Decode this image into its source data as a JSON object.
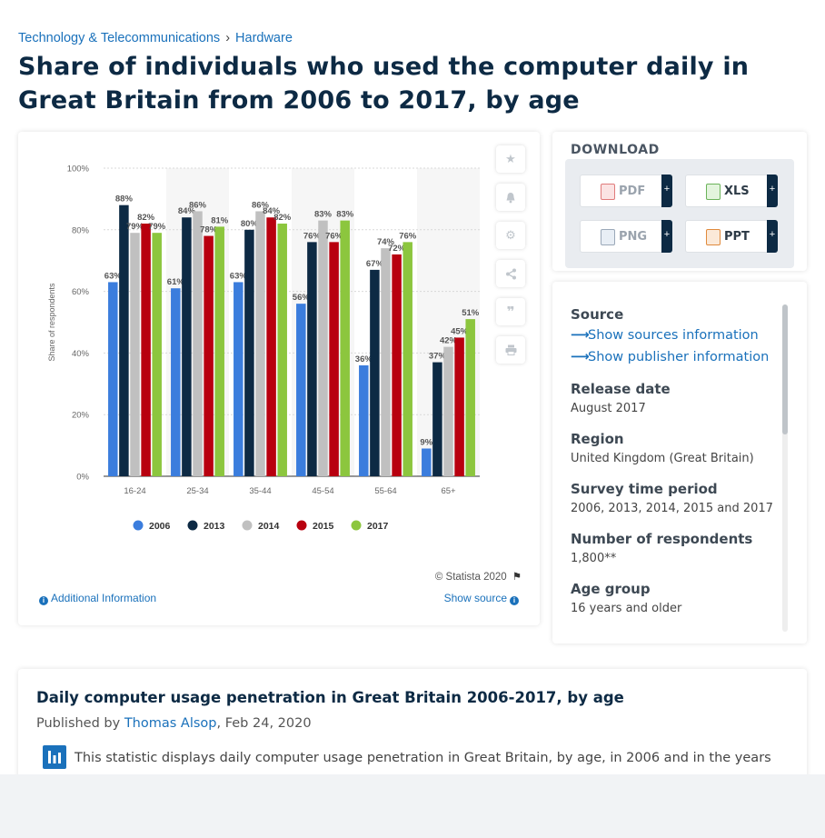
{
  "breadcrumb": {
    "category": "Technology & Telecommunications",
    "separator": "›",
    "sub": "Hardware"
  },
  "page_title": "Share of individuals who used the computer daily in Great Britain from 2006 to 2017, by age",
  "chart_data": {
    "type": "bar",
    "categories": [
      "16-24",
      "25-34",
      "35-44",
      "45-54",
      "55-64",
      "65+"
    ],
    "series": [
      {
        "name": "2006",
        "color": "#3b7ddd",
        "values": [
          63,
          61,
          63,
          56,
          36,
          9
        ]
      },
      {
        "name": "2013",
        "color": "#0d2a44",
        "values": [
          88,
          84,
          80,
          76,
          67,
          37
        ]
      },
      {
        "name": "2014",
        "color": "#c0c0c0",
        "values": [
          79,
          86,
          86,
          83,
          74,
          42
        ]
      },
      {
        "name": "2015",
        "color": "#b8000f",
        "values": [
          82,
          78,
          84,
          76,
          72,
          45
        ]
      },
      {
        "name": "2017",
        "color": "#8cc63e",
        "values": [
          79,
          81,
          82,
          83,
          76,
          51
        ]
      }
    ],
    "ylabel": "Share of respondents",
    "ylim": [
      0,
      100
    ],
    "yticks": [
      "0%",
      "20%",
      "40%",
      "60%",
      "80%",
      "100%"
    ],
    "value_suffix": "%",
    "grid": true,
    "legend": "bottom"
  },
  "chart_footer": {
    "copyright": "© Statista 2020",
    "additional_info": "Additional Information",
    "show_source": "Show source"
  },
  "toolbar_icons": [
    "star-icon",
    "bell-icon",
    "gear-icon",
    "share-icon",
    "quote-icon",
    "print-icon"
  ],
  "download": {
    "title": "DOWNLOAD",
    "buttons": [
      {
        "label": "PDF",
        "plus": "+"
      },
      {
        "label": "XLS",
        "plus": "+"
      },
      {
        "label": "PNG",
        "plus": "+"
      },
      {
        "label": "PPT",
        "plus": "+"
      }
    ]
  },
  "source_panel": {
    "source_heading": "Source",
    "show_sources": "Show sources information",
    "show_publisher": "Show publisher information",
    "release_heading": "Release date",
    "release_value": "August 2017",
    "region_heading": "Region",
    "region_value": "United Kingdom (Great Britain)",
    "survey_heading": "Survey time period",
    "survey_value": "2006, 2013, 2014, 2015 and 2017",
    "respondents_heading": "Number of respondents",
    "respondents_value": "1,800**",
    "age_heading": "Age group",
    "age_value": "16 years and older"
  },
  "description": {
    "title": "Daily computer usage penetration in Great Britain 2006-2017, by age",
    "published_prefix": "Published by",
    "author": "Thomas Alsop",
    "date": ", Feb 24, 2020",
    "text": "This statistic displays daily computer usage penetration in Great Britain, by age, in 2006 and in the years"
  }
}
